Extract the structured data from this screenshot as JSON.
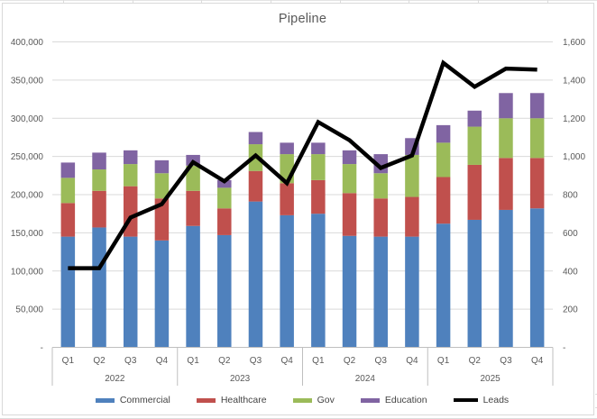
{
  "chart_data": {
    "type": "combo-stacked-bar-line",
    "title": "Pipeline",
    "categories": [
      "Q1",
      "Q2",
      "Q3",
      "Q4",
      "Q1",
      "Q2",
      "Q3",
      "Q4",
      "Q1",
      "Q2",
      "Q3",
      "Q4",
      "Q1",
      "Q2",
      "Q3",
      "Q4"
    ],
    "year_groups": [
      "2022",
      "2023",
      "2024",
      "2025"
    ],
    "series": [
      {
        "name": "Commercial",
        "type": "bar",
        "stacked": true,
        "axis": "left",
        "color": "#4F81BD",
        "values": [
          145000,
          157000,
          145000,
          140000,
          159000,
          147000,
          191000,
          173000,
          175000,
          146000,
          145000,
          145000,
          162000,
          167000,
          180000,
          182000
        ]
      },
      {
        "name": "Healthcare",
        "type": "bar",
        "stacked": true,
        "axis": "left",
        "color": "#C0504D",
        "values": [
          44000,
          48000,
          66000,
          55000,
          46000,
          35000,
          40000,
          42000,
          44000,
          56000,
          50000,
          52000,
          61000,
          72000,
          68000,
          66000
        ]
      },
      {
        "name": "Gov",
        "type": "bar",
        "stacked": true,
        "axis": "left",
        "color": "#9BBB59",
        "values": [
          33000,
          28000,
          29000,
          33000,
          33000,
          27000,
          35000,
          38000,
          34000,
          38000,
          33000,
          55000,
          45000,
          50000,
          52000,
          52000
        ]
      },
      {
        "name": "Education",
        "type": "bar",
        "stacked": true,
        "axis": "left",
        "color": "#8064A2",
        "values": [
          20000,
          22000,
          18000,
          17000,
          14000,
          10000,
          16000,
          15000,
          15000,
          18000,
          25000,
          22000,
          23000,
          21000,
          33000,
          33000
        ]
      },
      {
        "name": "Leads",
        "type": "line",
        "axis": "right",
        "color": "#000000",
        "values": [
          415,
          415,
          680,
          750,
          970,
          870,
          1005,
          860,
          1180,
          1085,
          940,
          1005,
          1490,
          1365,
          1460,
          1455
        ]
      }
    ],
    "left_axis": {
      "min": 0,
      "max": 400000,
      "step": 50000,
      "tick_labels": [
        "-",
        "50,000",
        "100,000",
        "150,000",
        "200,000",
        "250,000",
        "300,000",
        "350,000",
        "400,000"
      ]
    },
    "right_axis": {
      "min": 0,
      "max": 1600,
      "step": 200,
      "tick_labels": [
        "-",
        "200",
        "400",
        "600",
        "800",
        "1,000",
        "1,200",
        "1,400",
        "1,600"
      ]
    },
    "grid": true,
    "legend_position": "bottom"
  },
  "colors": {
    "grid": "#d9d9d9",
    "axis_line": "#bfbfbf",
    "axis_text": "#595959",
    "title_text": "#595959",
    "legend_text": "#444444",
    "background": "#ffffff"
  }
}
